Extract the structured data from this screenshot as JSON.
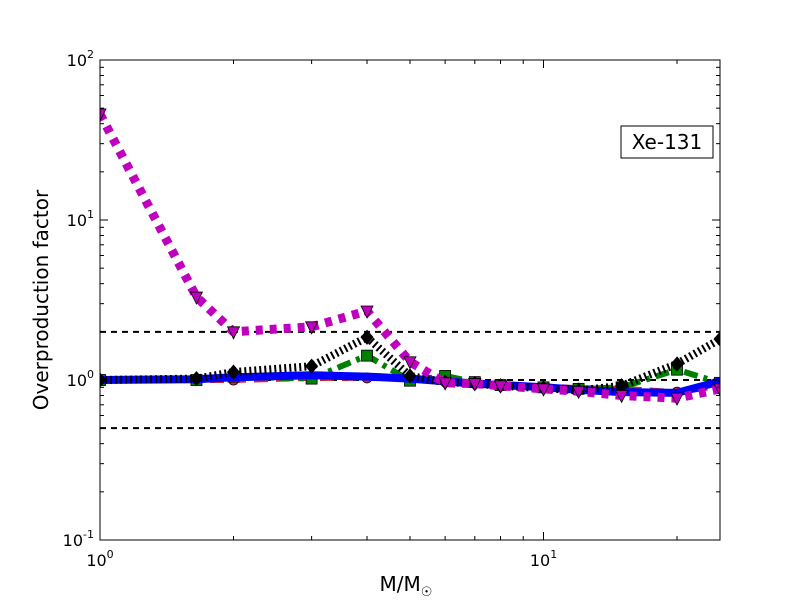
{
  "chart_data": {
    "type": "line",
    "title": "",
    "xlabel": "M/M",
    "xlabel_sub": "☉",
    "ylabel": "Overproduction factor",
    "xscale": "log",
    "yscale": "log",
    "xlim": [
      1,
      25
    ],
    "ylim": [
      0.1,
      100
    ],
    "x_ticks": [
      {
        "base": "10",
        "exp": "0",
        "value": 1
      },
      {
        "base": "10",
        "exp": "1",
        "value": 10
      }
    ],
    "y_ticks": [
      {
        "base": "10",
        "exp": "-1",
        "value": 0.1
      },
      {
        "base": "10",
        "exp": "0",
        "value": 1
      },
      {
        "base": "10",
        "exp": "1",
        "value": 10
      },
      {
        "base": "10",
        "exp": "2",
        "value": 100
      }
    ],
    "grid": false,
    "legend": null,
    "annotation": {
      "text": "Xe-131",
      "placement": "top-right"
    },
    "reference_lines": [
      0.5,
      1.0,
      2.0
    ],
    "series": [
      {
        "color": "#d62728",
        "linestyle": "dashed",
        "marker": "circle",
        "x": [
          1,
          1.65,
          2,
          3,
          4,
          5,
          6,
          7,
          8,
          10,
          12,
          15,
          20,
          25
        ],
        "y": [
          1.0,
          1.0,
          1.0,
          1.03,
          1.03,
          1.02,
          0.99,
          0.96,
          0.94,
          0.91,
          0.89,
          0.88,
          0.84,
          0.92
        ]
      },
      {
        "color": "#008000",
        "linestyle": "dashdot",
        "marker": "square",
        "x": [
          1,
          1.65,
          2,
          3,
          4,
          5,
          6,
          7,
          8,
          10,
          12,
          15,
          20,
          25
        ],
        "y": [
          1.0,
          1.0,
          1.05,
          1.02,
          1.42,
          0.99,
          1.06,
          0.97,
          0.93,
          0.9,
          0.88,
          0.9,
          1.16,
          0.96
        ]
      },
      {
        "color": "#0000ff",
        "linestyle": "solid",
        "marker": "none",
        "x": [
          1,
          1.65,
          2,
          3,
          4,
          5,
          6,
          7,
          8,
          10,
          12,
          15,
          20,
          25
        ],
        "y": [
          1.0,
          1.01,
          1.04,
          1.07,
          1.05,
          1.02,
          0.98,
          0.95,
          0.93,
          0.9,
          0.87,
          0.84,
          0.83,
          0.98
        ]
      },
      {
        "color": "#000000",
        "linestyle": "dotted",
        "marker": "diamond",
        "x": [
          1,
          1.65,
          2,
          3,
          4,
          5,
          6,
          7,
          8,
          10,
          12,
          15,
          20,
          25
        ],
        "y": [
          1.0,
          1.02,
          1.12,
          1.22,
          1.85,
          1.06,
          0.97,
          0.95,
          0.92,
          0.89,
          0.86,
          0.92,
          1.26,
          1.8
        ]
      },
      {
        "color": "#bf00bf",
        "linestyle": "dotted",
        "marker": "triangle-down",
        "x": [
          1,
          1.65,
          2,
          3,
          4,
          5,
          6,
          7,
          8,
          10,
          12,
          15,
          20,
          25
        ],
        "y": [
          46,
          3.3,
          2.0,
          2.15,
          2.7,
          1.3,
          0.96,
          0.95,
          0.92,
          0.88,
          0.85,
          0.8,
          0.77,
          0.88
        ]
      }
    ]
  }
}
